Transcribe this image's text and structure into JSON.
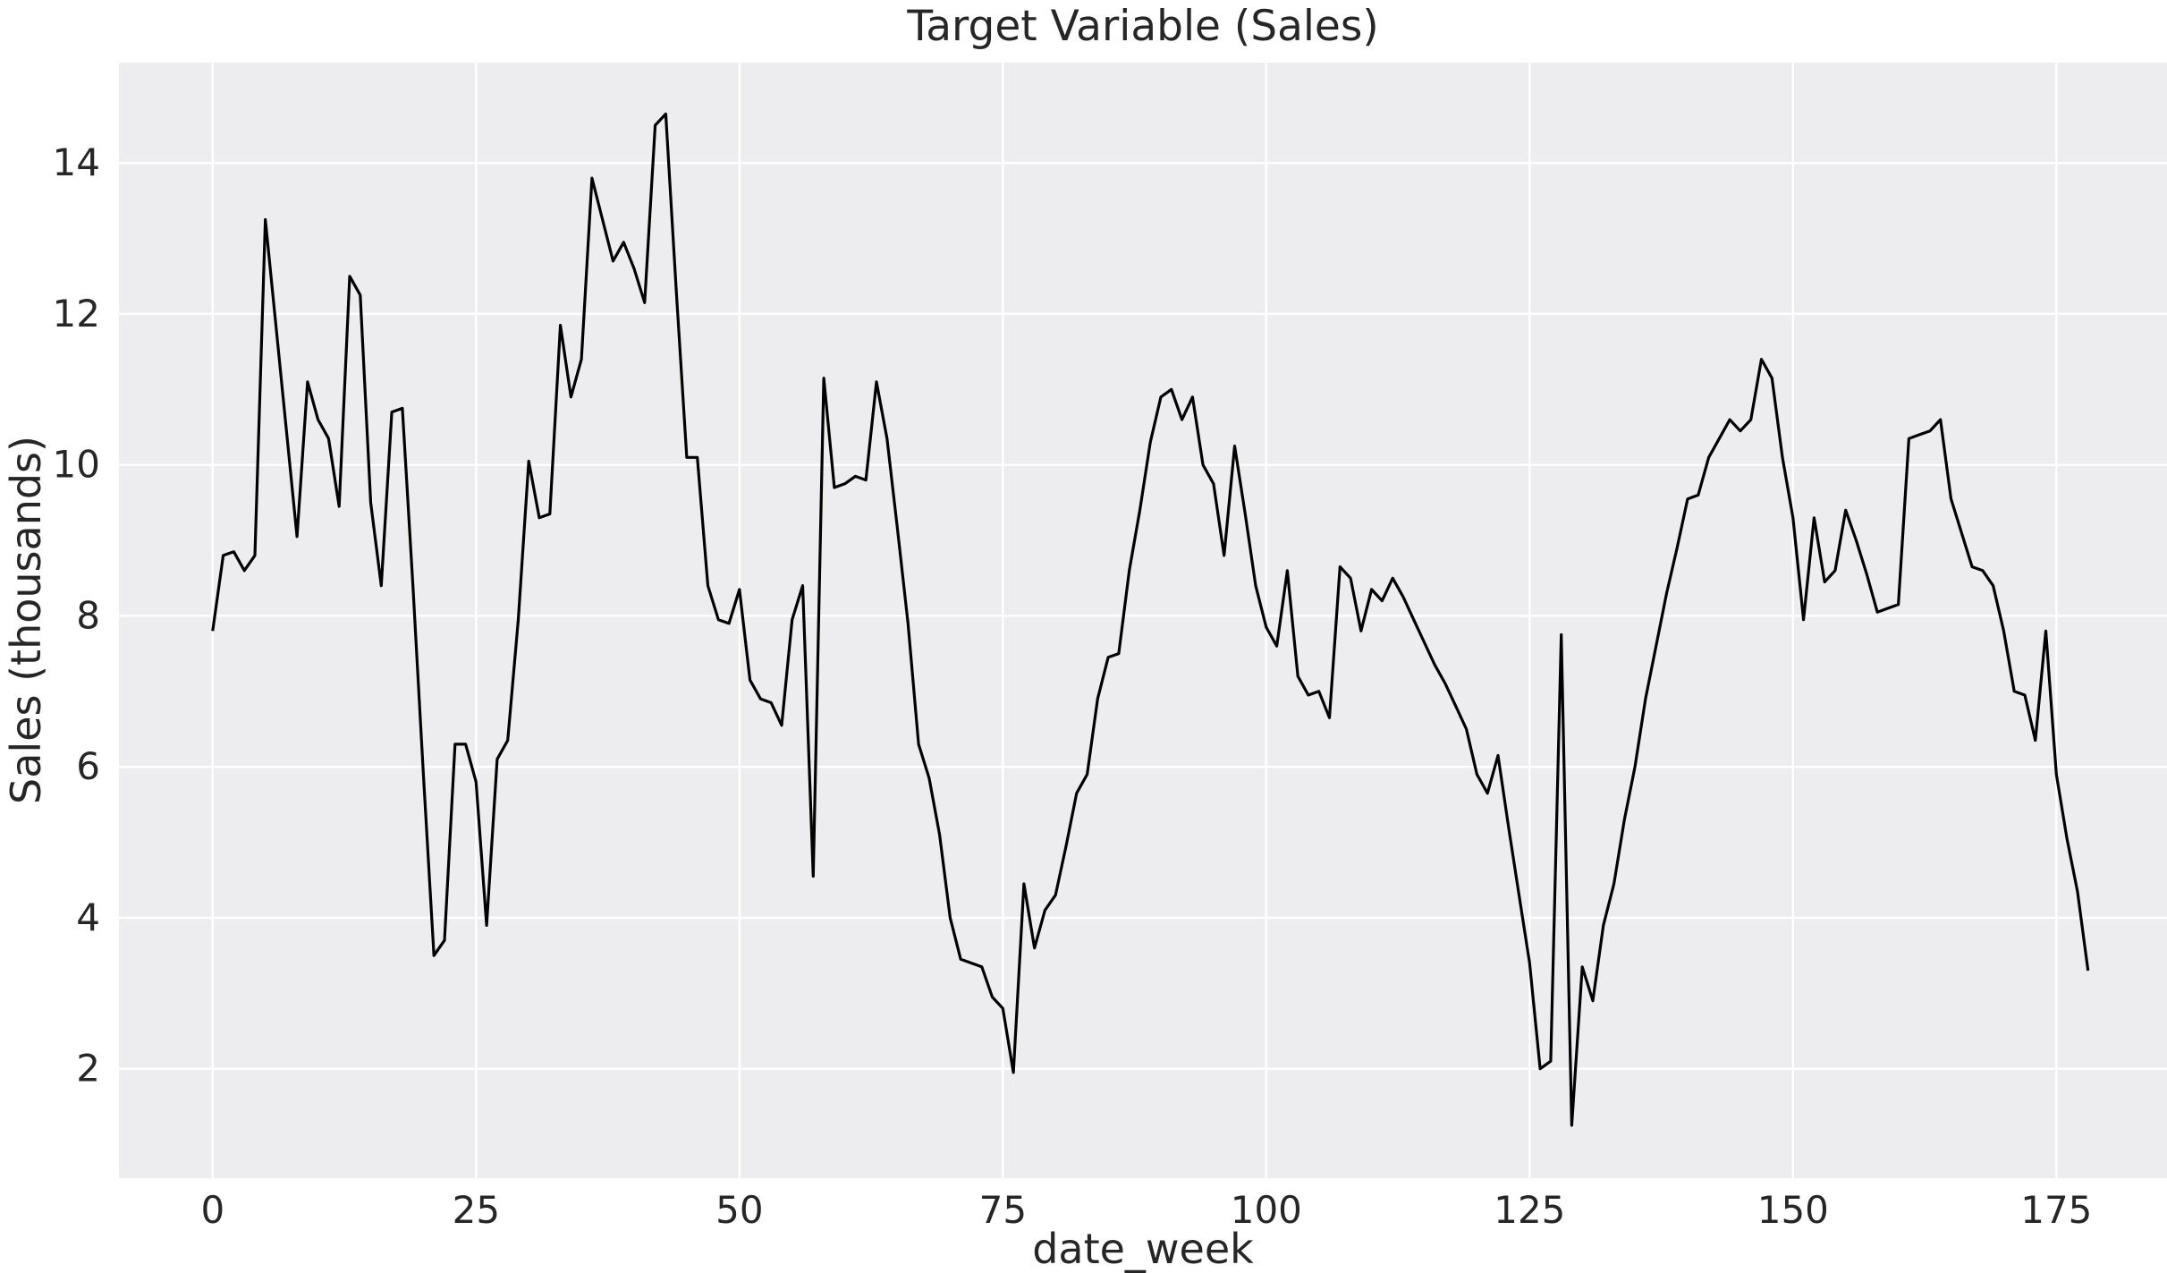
{
  "chart_data": {
    "type": "line",
    "title": "Target Variable (Sales)",
    "xlabel": "date_week",
    "ylabel": "Sales (thousands)",
    "x": {
      "start": 0,
      "step": 1
    },
    "x_ticks": [
      0,
      25,
      50,
      75,
      100,
      125,
      150,
      175
    ],
    "y_ticks": [
      2,
      4,
      6,
      8,
      10,
      12,
      14
    ],
    "xlim": [
      -8.9,
      185.5
    ],
    "ylim": [
      0.55,
      15.33
    ],
    "grid": true,
    "legend": false,
    "series": [
      {
        "name": "Sales",
        "color": "#000000",
        "values": [
          7.8,
          8.8,
          8.85,
          8.6,
          8.8,
          13.25,
          11.85,
          10.45,
          9.05,
          11.1,
          10.6,
          10.35,
          9.45,
          12.5,
          12.25,
          9.5,
          8.4,
          10.7,
          10.75,
          8.4,
          5.9,
          3.5,
          3.7,
          6.3,
          6.3,
          5.8,
          3.9,
          6.1,
          6.35,
          7.95,
          10.05,
          9.3,
          9.35,
          11.85,
          10.9,
          11.4,
          13.8,
          13.25,
          12.7,
          12.95,
          12.6,
          12.15,
          14.5,
          14.65,
          12.3,
          10.1,
          10.1,
          8.4,
          7.95,
          7.9,
          8.35,
          7.15,
          6.9,
          6.85,
          6.55,
          7.95,
          8.4,
          4.55,
          11.15,
          9.7,
          9.75,
          9.85,
          9.8,
          11.1,
          10.35,
          9.15,
          7.9,
          6.3,
          5.85,
          5.1,
          4.0,
          3.45,
          3.4,
          3.35,
          2.95,
          2.8,
          1.95,
          4.45,
          3.6,
          4.1,
          4.3,
          4.95,
          5.65,
          5.9,
          6.9,
          7.45,
          7.5,
          8.6,
          9.4,
          10.3,
          10.9,
          11.0,
          10.6,
          10.9,
          10.0,
          9.75,
          8.8,
          10.25,
          9.35,
          8.4,
          7.85,
          7.6,
          8.6,
          7.2,
          6.95,
          7.0,
          6.65,
          8.65,
          8.5,
          7.8,
          8.35,
          8.2,
          8.5,
          8.25,
          7.95,
          7.65,
          7.35,
          7.1,
          6.8,
          6.5,
          5.9,
          5.65,
          6.15,
          5.2,
          4.3,
          3.4,
          2.0,
          2.1,
          7.75,
          1.25,
          3.35,
          2.9,
          3.9,
          4.45,
          5.3,
          6.0,
          6.9,
          7.6,
          8.3,
          8.9,
          9.55,
          9.6,
          10.1,
          10.35,
          10.6,
          10.45,
          10.6,
          11.4,
          11.15,
          10.1,
          9.3,
          7.95,
          9.3,
          8.45,
          8.6,
          9.4,
          9.0,
          8.55,
          8.05,
          8.1,
          8.15,
          10.35,
          10.4,
          10.45,
          10.6,
          9.55,
          9.1,
          8.65,
          8.6,
          8.4,
          7.8,
          7.0,
          6.95,
          6.35,
          7.8,
          5.9,
          5.05,
          4.35,
          3.3
        ]
      }
    ]
  },
  "colors": {
    "figure_bg": "#ffffff",
    "plot_bg": "#ededef",
    "grid": "#ffffff",
    "line": "#000000",
    "text": "#262626"
  }
}
